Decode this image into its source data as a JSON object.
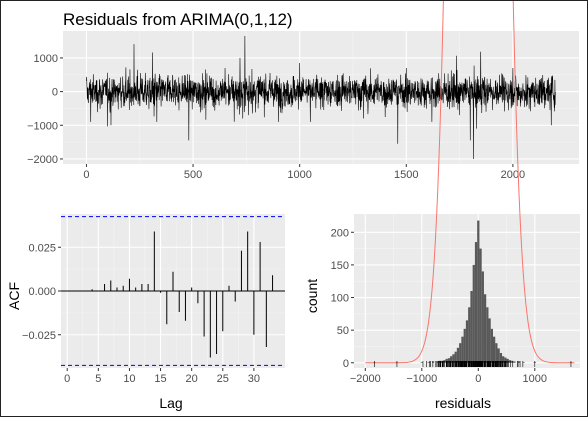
{
  "colors": {
    "panel_bg": "#ebebeb",
    "grid_major": "#ffffff",
    "grid_minor": "#f5f5f5",
    "line": "#000000",
    "ci_line": "#0000ff",
    "bars": "#595959",
    "density": "#f8766d"
  },
  "chart_data": [
    {
      "type": "line",
      "title": "Residuals from ARIMA(0,1,12)",
      "xlabel": "",
      "ylabel": "",
      "xlim": [
        0,
        2200
      ],
      "ylim": [
        -2000,
        1500
      ],
      "xticks": [
        0,
        500,
        1000,
        1500,
        2000
      ],
      "yticks": [
        -2000,
        -1000,
        0,
        1000
      ],
      "grid": true,
      "n_points": 2200,
      "notable_points": [
        {
          "x": 20,
          "y": -900
        },
        {
          "x": 115,
          "y": -1000
        },
        {
          "x": 240,
          "y": 650
        },
        {
          "x": 330,
          "y": -900
        },
        {
          "x": 480,
          "y": -1450
        },
        {
          "x": 650,
          "y": 700
        },
        {
          "x": 720,
          "y": 1000
        },
        {
          "x": 733,
          "y": -800
        },
        {
          "x": 743,
          "y": 1650
        },
        {
          "x": 760,
          "y": -700
        },
        {
          "x": 900,
          "y": -900
        },
        {
          "x": 1000,
          "y": 850
        },
        {
          "x": 1050,
          "y": -900
        },
        {
          "x": 1300,
          "y": -800
        },
        {
          "x": 1460,
          "y": -1550
        },
        {
          "x": 1500,
          "y": 700
        },
        {
          "x": 1620,
          "y": -900
        },
        {
          "x": 1750,
          "y": -700
        },
        {
          "x": 1800,
          "y": -1450
        },
        {
          "x": 1815,
          "y": -2000
        },
        {
          "x": 1830,
          "y": -1100
        },
        {
          "x": 2000,
          "y": 700
        },
        {
          "x": 2180,
          "y": -1000
        }
      ]
    },
    {
      "type": "bar",
      "title": "",
      "xlabel": "Lag",
      "ylabel": "ACF",
      "xlim": [
        0,
        34
      ],
      "ylim": [
        -0.044,
        0.044
      ],
      "xticks": [
        0,
        5,
        10,
        15,
        20,
        25,
        30
      ],
      "yticks": [
        -0.025,
        0.0,
        0.025
      ],
      "ytick_labels": [
        "-0.025",
        "0.000",
        "0.025"
      ],
      "ci": [
        -0.0425,
        0.0425
      ],
      "grid": true,
      "lags": [
        1,
        2,
        3,
        4,
        5,
        6,
        7,
        8,
        9,
        10,
        11,
        12,
        13,
        14,
        15,
        16,
        17,
        18,
        19,
        20,
        21,
        22,
        23,
        24,
        25,
        26,
        27,
        28,
        29,
        30,
        31,
        32,
        33
      ],
      "values": [
        0.0,
        0.0,
        0.0,
        0.001,
        0.0,
        0.004,
        0.006,
        0.002,
        0.003,
        0.007,
        0.002,
        0.004,
        0.004,
        0.034,
        -0.001,
        -0.019,
        0.011,
        -0.012,
        -0.017,
        0.002,
        -0.007,
        -0.026,
        -0.038,
        -0.036,
        -0.023,
        0.003,
        -0.006,
        0.023,
        0.034,
        -0.025,
        0.028,
        -0.032,
        0.009
      ]
    },
    {
      "type": "histogram",
      "title": "",
      "xlabel": "residuals",
      "ylabel": "count",
      "xlim": [
        -2200,
        1800
      ],
      "ylim": [
        0,
        225
      ],
      "xticks": [
        -2000,
        -1000,
        0,
        1000
      ],
      "yticks": [
        0,
        50,
        100,
        150,
        200
      ],
      "grid": true,
      "bin_width": 40,
      "bins": [
        {
          "x": -1840,
          "count": 1
        },
        {
          "x": -1440,
          "count": 1
        },
        {
          "x": -1000,
          "count": 1
        },
        {
          "x": -880,
          "count": 1
        },
        {
          "x": -800,
          "count": 2
        },
        {
          "x": -720,
          "count": 2
        },
        {
          "x": -680,
          "count": 3
        },
        {
          "x": -640,
          "count": 3
        },
        {
          "x": -600,
          "count": 4
        },
        {
          "x": -560,
          "count": 6
        },
        {
          "x": -520,
          "count": 7
        },
        {
          "x": -480,
          "count": 10
        },
        {
          "x": -440,
          "count": 13
        },
        {
          "x": -400,
          "count": 17
        },
        {
          "x": -360,
          "count": 23
        },
        {
          "x": -320,
          "count": 30
        },
        {
          "x": -280,
          "count": 40
        },
        {
          "x": -240,
          "count": 52
        },
        {
          "x": -200,
          "count": 65
        },
        {
          "x": -160,
          "count": 85
        },
        {
          "x": -120,
          "count": 110
        },
        {
          "x": -80,
          "count": 150
        },
        {
          "x": -40,
          "count": 185
        },
        {
          "x": 0,
          "count": 218
        },
        {
          "x": 40,
          "count": 175
        },
        {
          "x": 80,
          "count": 140
        },
        {
          "x": 120,
          "count": 105
        },
        {
          "x": 160,
          "count": 85
        },
        {
          "x": 200,
          "count": 68
        },
        {
          "x": 240,
          "count": 52
        },
        {
          "x": 280,
          "count": 40
        },
        {
          "x": 320,
          "count": 30
        },
        {
          "x": 360,
          "count": 22
        },
        {
          "x": 400,
          "count": 15
        },
        {
          "x": 440,
          "count": 10
        },
        {
          "x": 480,
          "count": 8
        },
        {
          "x": 520,
          "count": 6
        },
        {
          "x": 560,
          "count": 4
        },
        {
          "x": 600,
          "count": 3
        },
        {
          "x": 640,
          "count": 2
        },
        {
          "x": 720,
          "count": 2
        },
        {
          "x": 800,
          "count": 1
        },
        {
          "x": 1000,
          "count": 1
        },
        {
          "x": 1640,
          "count": 1
        }
      ],
      "density": {
        "mean": 0,
        "sd": 300,
        "scale": 87000
      },
      "rug": true
    }
  ]
}
